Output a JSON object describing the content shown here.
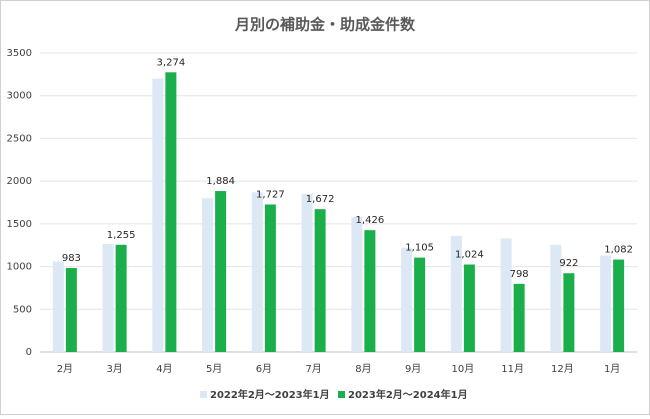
{
  "chart_data": {
    "type": "bar",
    "title": "月別の補助金・助成金件数",
    "categories": [
      "2月",
      "3月",
      "4月",
      "5月",
      "6月",
      "7月",
      "8月",
      "9月",
      "10月",
      "11月",
      "12月",
      "1月"
    ],
    "series": [
      {
        "name": "2022年2月～2023年1月",
        "color": "#dde8f5",
        "values": [
          1060,
          1265,
          3200,
          1800,
          1870,
          1850,
          1580,
          1220,
          1360,
          1330,
          1255,
          1130
        ]
      },
      {
        "name": "2023年2月～2024年1月",
        "color": "#1aaf4b",
        "values": [
          983,
          1255,
          3274,
          1884,
          1727,
          1672,
          1426,
          1105,
          1024,
          798,
          922,
          1082
        ],
        "value_labels": [
          "983",
          "1,255",
          "3,274",
          "1,884",
          "1,727",
          "1,672",
          "1,426",
          "1,105",
          "1,024",
          "798",
          "922",
          "1,082"
        ]
      }
    ],
    "ylim": [
      0,
      3500
    ],
    "yticks": [
      0,
      500,
      1000,
      1500,
      2000,
      2500,
      3000,
      3500
    ],
    "grid": true,
    "legend": "bottom"
  }
}
